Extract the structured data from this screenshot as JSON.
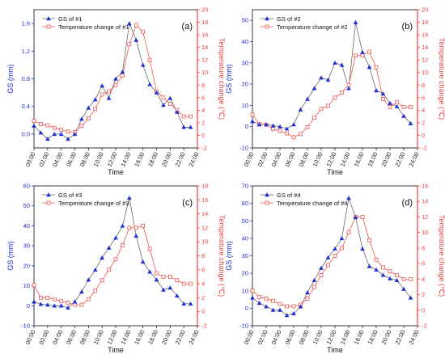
{
  "colors": {
    "gs": "#1f2fd6",
    "temp": "#e8433f",
    "connector": "#555555",
    "axis": "#222222"
  },
  "chart_data": [
    {
      "type": "line",
      "panel_label": "(a)",
      "xlabel": "Time",
      "ylabel_left": "GS (mm)",
      "ylabel_right": "Temperature change (℃)",
      "x": [
        "00:00",
        "01:00",
        "02:00",
        "03:00",
        "04:00",
        "05:00",
        "06:00",
        "07:00",
        "08:00",
        "09:00",
        "10:00",
        "11:00",
        "12:00",
        "13:00",
        "14:00",
        "15:00",
        "16:00",
        "17:00",
        "18:00",
        "19:00",
        "20:00",
        "21:00",
        "22:00",
        "23:00"
      ],
      "xticks": [
        "00:00",
        "02:00",
        "04:00",
        "06:00",
        "08:00",
        "10:00",
        "12:00",
        "14:00",
        "16:00",
        "18:00",
        "20:00",
        "22:00",
        "24:00"
      ],
      "xlim": [
        0,
        24
      ],
      "ylim_left": [
        -0.2,
        1.8
      ],
      "yticks_left": [
        "0.0",
        "0.4",
        "0.8",
        "1.2",
        "1.6"
      ],
      "ylim_right": [
        -2,
        20
      ],
      "yticks_right": [
        "-2",
        "0",
        "2",
        "4",
        "6",
        "8",
        "10",
        "12",
        "14",
        "16",
        "18",
        "20"
      ],
      "series": [
        {
          "name": "GS of #1",
          "axis": "left",
          "marker": "triangle",
          "values": [
            0.12,
            0.02,
            -0.07,
            0.0,
            0.0,
            -0.07,
            0.0,
            0.22,
            0.38,
            0.5,
            0.7,
            0.52,
            0.8,
            0.9,
            1.6,
            1.36,
            1.0,
            0.72,
            0.6,
            0.42,
            0.52,
            0.32,
            0.1,
            0.1
          ]
        },
        {
          "name": "Temperature change of #1",
          "axis": "right",
          "marker": "square",
          "values": [
            2.3,
            1.8,
            1.6,
            1.2,
            0.9,
            0.6,
            0.5,
            1.5,
            2.7,
            4.2,
            6.5,
            7.0,
            8.0,
            9.5,
            14.5,
            17.5,
            16.5,
            12.0,
            7.0,
            6.0,
            5.0,
            4.0,
            3.0,
            3.0
          ]
        }
      ]
    },
    {
      "type": "line",
      "panel_label": "(b)",
      "xlabel": "Time",
      "ylabel_left": "GS (mm)",
      "ylabel_right": "Temperature change (℃)",
      "x": [
        "00:00",
        "01:00",
        "02:00",
        "03:00",
        "04:00",
        "05:00",
        "06:00",
        "07:00",
        "08:00",
        "09:00",
        "10:00",
        "11:00",
        "12:00",
        "13:00",
        "14:00",
        "15:00",
        "16:00",
        "17:00",
        "18:00",
        "19:00",
        "20:00",
        "21:00",
        "22:00",
        "23:00"
      ],
      "xticks": [
        "00:00",
        "02:00",
        "04:00",
        "06:00",
        "08:00",
        "10:00",
        "12:00",
        "14:00",
        "16:00",
        "18:00",
        "20:00",
        "22:00",
        "24:00"
      ],
      "xlim": [
        0,
        24
      ],
      "ylim_left": [
        -10,
        55
      ],
      "yticks_left": [
        "-10",
        "0",
        "10",
        "20",
        "30",
        "40",
        "50"
      ],
      "ylim_right": [
        -2,
        20
      ],
      "yticks_right": [
        "-2",
        "0",
        "2",
        "4",
        "6",
        "8",
        "10",
        "12",
        "14",
        "16",
        "18",
        "20"
      ],
      "series": [
        {
          "name": "GS of #2",
          "axis": "left",
          "marker": "triangle",
          "values": [
            2.5,
            1.0,
            1.0,
            0.5,
            0.0,
            -1.0,
            1.0,
            8.0,
            13.0,
            18.0,
            23.0,
            22.0,
            30.0,
            29.0,
            18.0,
            49.0,
            35.0,
            28.0,
            17.0,
            15.5,
            11.0,
            9.5,
            5.0,
            1.5
          ]
        },
        {
          "name": "Temperature change of #2",
          "axis": "right",
          "marker": "square",
          "values": [
            3.3,
            1.8,
            1.7,
            1.0,
            0.7,
            0.3,
            -0.3,
            0.2,
            1.3,
            2.8,
            4.2,
            4.7,
            6.0,
            6.8,
            8.0,
            12.7,
            12.7,
            13.3,
            10.8,
            5.8,
            4.5,
            5.3,
            4.5,
            4.5
          ]
        }
      ]
    },
    {
      "type": "line",
      "panel_label": "(c)",
      "xlabel": "Time",
      "ylabel_left": "GS (mm)",
      "ylabel_right": "Temperature change (℃)",
      "x": [
        "00:00",
        "01:00",
        "02:00",
        "03:00",
        "04:00",
        "05:00",
        "06:00",
        "07:00",
        "08:00",
        "09:00",
        "10:00",
        "11:00",
        "12:00",
        "13:00",
        "14:00",
        "15:00",
        "16:00",
        "17:00",
        "18:00",
        "19:00",
        "20:00",
        "21:00",
        "22:00",
        "23:00"
      ],
      "xticks": [
        "00:00",
        "02:00",
        "04:00",
        "06:00",
        "08:00",
        "10:00",
        "12:00",
        "14:00",
        "16:00",
        "18:00",
        "20:00",
        "22:00",
        "24:00"
      ],
      "xlim": [
        0,
        24
      ],
      "ylim_left": [
        -10,
        60
      ],
      "yticks_left": [
        "-10",
        "0",
        "10",
        "20",
        "30",
        "40",
        "50",
        "60"
      ],
      "ylim_right": [
        -2,
        18
      ],
      "yticks_right": [
        "-2",
        "0",
        "2",
        "4",
        "6",
        "8",
        "10",
        "12",
        "14",
        "16",
        "18"
      ],
      "series": [
        {
          "name": "GS of #3",
          "axis": "left",
          "marker": "triangle",
          "values": [
            2.0,
            0.8,
            0.5,
            0.0,
            0.0,
            -1.0,
            2.0,
            7.0,
            13.0,
            18.0,
            24.0,
            29.0,
            34.0,
            40.0,
            54.0,
            35.0,
            22.0,
            17.0,
            13.0,
            8.0,
            9.0,
            5.0,
            1.0,
            1.0
          ]
        },
        {
          "name": "Temperature change of #3",
          "axis": "right",
          "marker": "square",
          "values": [
            3.8,
            2.0,
            2.0,
            1.8,
            1.5,
            1.3,
            1.0,
            1.0,
            1.8,
            3.0,
            4.5,
            6.0,
            7.5,
            9.5,
            12.0,
            12.0,
            12.3,
            9.0,
            5.5,
            5.0,
            5.0,
            4.5,
            4.0,
            4.0
          ]
        }
      ]
    },
    {
      "type": "line",
      "panel_label": "(d)",
      "xlabel": "Time",
      "ylabel_left": "GS (mm)",
      "ylabel_right": "Temperature change (℃)",
      "x": [
        "00:00",
        "01:00",
        "02:00",
        "03:00",
        "04:00",
        "05:00",
        "06:00",
        "07:00",
        "08:00",
        "09:00",
        "10:00",
        "11:00",
        "12:00",
        "13:00",
        "14:00",
        "15:00",
        "16:00",
        "17:00",
        "18:00",
        "19:00",
        "20:00",
        "21:00",
        "22:00",
        "23:00"
      ],
      "xticks": [
        "00:00",
        "02:00",
        "04:00",
        "06:00",
        "08:00",
        "10:00",
        "12:00",
        "14:00",
        "16:00",
        "18:00",
        "20:00",
        "22:00",
        "24:00"
      ],
      "xlim": [
        0,
        24
      ],
      "ylim_left": [
        -10,
        70
      ],
      "yticks_left": [
        "-10",
        "0",
        "10",
        "20",
        "30",
        "40",
        "50",
        "60",
        "70"
      ],
      "ylim_right": [
        -2,
        16
      ],
      "yticks_right": [
        "-2",
        "0",
        "2",
        "4",
        "6",
        "8",
        "10",
        "12",
        "14",
        "16"
      ],
      "series": [
        {
          "name": "GS of #4",
          "axis": "left",
          "marker": "triangle",
          "values": [
            6.0,
            3.0,
            1.0,
            -1.0,
            -1.0,
            -4.0,
            -3.0,
            1.0,
            9.0,
            16.0,
            23.0,
            29.0,
            34.0,
            40.0,
            63.0,
            52.0,
            34.0,
            24.0,
            22.0,
            19.0,
            17.0,
            16.0,
            11.0,
            6.0
          ]
        },
        {
          "name": "Temperature change of #4",
          "axis": "right",
          "marker": "square",
          "values": [
            2.5,
            1.7,
            1.5,
            1.2,
            0.8,
            0.5,
            0.5,
            0.7,
            1.5,
            3.0,
            4.5,
            5.8,
            7.0,
            8.0,
            10.0,
            12.0,
            12.0,
            9.0,
            6.5,
            5.5,
            5.0,
            4.5,
            4.0,
            4.0
          ]
        }
      ]
    }
  ]
}
